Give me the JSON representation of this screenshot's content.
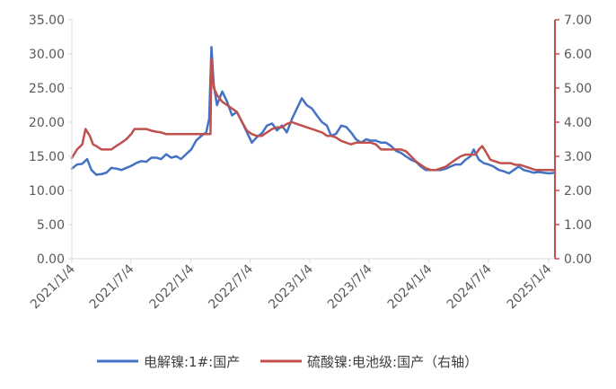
{
  "chart_data": {
    "type": "line",
    "title": "",
    "xlabel": "",
    "ylabel": "",
    "y2label": "",
    "x_ticks": [
      "2021/1/4",
      "2021/7/4",
      "2022/1/4",
      "2022/7/4",
      "2023/1/4",
      "2023/7/4",
      "2024/1/4",
      "2024/7/4",
      "2025/1/4"
    ],
    "x_range": [
      "2021/1/4",
      "2025/1/24"
    ],
    "y_left": {
      "ticks": [
        "0.00",
        "5.00",
        "10.00",
        "15.00",
        "20.00",
        "25.00",
        "30.00",
        "35.00"
      ],
      "ylim": [
        0,
        35
      ]
    },
    "y_right": {
      "ticks": [
        "0.00",
        "1.00",
        "2.00",
        "3.00",
        "4.00",
        "5.00",
        "6.00",
        "7.00"
      ],
      "ylim": [
        0,
        7
      ]
    },
    "grid": false,
    "legend": "bottom",
    "series": [
      {
        "name": "电解镍:1#:国产",
        "axis": "left",
        "color": "#4472C4",
        "points": [
          [
            "2021/1/4",
            13.2
          ],
          [
            "2021/1/20",
            13.8
          ],
          [
            "2021/2/5",
            13.9
          ],
          [
            "2021/2/20",
            14.6
          ],
          [
            "2021/3/5",
            13.0
          ],
          [
            "2021/3/20",
            12.3
          ],
          [
            "2021/4/5",
            12.4
          ],
          [
            "2021/4/20",
            12.6
          ],
          [
            "2021/5/5",
            13.3
          ],
          [
            "2021/5/20",
            13.2
          ],
          [
            "2021/6/5",
            13.0
          ],
          [
            "2021/6/20",
            13.3
          ],
          [
            "2021/7/5",
            13.6
          ],
          [
            "2021/7/20",
            14.0
          ],
          [
            "2021/8/5",
            14.3
          ],
          [
            "2021/8/20",
            14.2
          ],
          [
            "2021/9/5",
            14.8
          ],
          [
            "2021/9/20",
            14.8
          ],
          [
            "2021/10/5",
            14.6
          ],
          [
            "2021/10/20",
            15.3
          ],
          [
            "2021/11/5",
            14.8
          ],
          [
            "2021/11/20",
            15.0
          ],
          [
            "2021/12/5",
            14.6
          ],
          [
            "2021/12/20",
            15.3
          ],
          [
            "2022/1/5",
            16.0
          ],
          [
            "2022/1/20",
            17.3
          ],
          [
            "2022/2/5",
            18.0
          ],
          [
            "2022/2/20",
            18.5
          ],
          [
            "2022/3/1",
            20.5
          ],
          [
            "2022/3/8",
            31.0
          ],
          [
            "2022/3/15",
            25.5
          ],
          [
            "2022/3/25",
            22.5
          ],
          [
            "2022/4/10",
            24.5
          ],
          [
            "2022/4/25",
            23.0
          ],
          [
            "2022/5/10",
            21.0
          ],
          [
            "2022/5/25",
            21.5
          ],
          [
            "2022/6/10",
            20.0
          ],
          [
            "2022/6/25",
            18.5
          ],
          [
            "2022/7/10",
            17.0
          ],
          [
            "2022/7/25",
            17.8
          ],
          [
            "2022/8/10",
            18.4
          ],
          [
            "2022/8/25",
            19.5
          ],
          [
            "2022/9/10",
            19.8
          ],
          [
            "2022/9/25",
            18.8
          ],
          [
            "2022/10/10",
            19.5
          ],
          [
            "2022/10/25",
            18.5
          ],
          [
            "2022/11/10",
            20.5
          ],
          [
            "2022/11/25",
            22.0
          ],
          [
            "2022/12/10",
            23.5
          ],
          [
            "2022/12/25",
            22.5
          ],
          [
            "2023/1/10",
            22.0
          ],
          [
            "2023/1/25",
            21.0
          ],
          [
            "2023/2/10",
            20.0
          ],
          [
            "2023/2/25",
            19.5
          ],
          [
            "2023/3/10",
            18.0
          ],
          [
            "2023/3/25",
            18.3
          ],
          [
            "2023/4/10",
            19.5
          ],
          [
            "2023/4/25",
            19.3
          ],
          [
            "2023/5/10",
            18.5
          ],
          [
            "2023/5/25",
            17.5
          ],
          [
            "2023/6/10",
            17.0
          ],
          [
            "2023/6/25",
            17.5
          ],
          [
            "2023/7/10",
            17.3
          ],
          [
            "2023/7/25",
            17.3
          ],
          [
            "2023/8/10",
            17.0
          ],
          [
            "2023/8/25",
            17.0
          ],
          [
            "2023/9/10",
            16.5
          ],
          [
            "2023/9/25",
            15.8
          ],
          [
            "2023/10/10",
            15.5
          ],
          [
            "2023/10/25",
            15.0
          ],
          [
            "2023/11/10",
            14.5
          ],
          [
            "2023/11/25",
            14.2
          ],
          [
            "2023/12/10",
            13.5
          ],
          [
            "2023/12/25",
            13.0
          ],
          [
            "2024/1/10",
            13.0
          ],
          [
            "2024/1/25",
            13.0
          ],
          [
            "2024/2/10",
            13.0
          ],
          [
            "2024/2/25",
            13.2
          ],
          [
            "2024/3/10",
            13.5
          ],
          [
            "2024/3/25",
            13.8
          ],
          [
            "2024/4/10",
            13.8
          ],
          [
            "2024/4/25",
            14.5
          ],
          [
            "2024/5/10",
            15.0
          ],
          [
            "2024/5/20",
            16.0
          ],
          [
            "2024/6/5",
            14.5
          ],
          [
            "2024/6/20",
            14.0
          ],
          [
            "2024/7/5",
            13.8
          ],
          [
            "2024/7/20",
            13.5
          ],
          [
            "2024/8/5",
            13.0
          ],
          [
            "2024/8/20",
            12.8
          ],
          [
            "2024/9/5",
            12.5
          ],
          [
            "2024/9/20",
            13.0
          ],
          [
            "2024/10/5",
            13.5
          ],
          [
            "2024/10/20",
            13.0
          ],
          [
            "2024/11/5",
            12.8
          ],
          [
            "2024/11/20",
            12.6
          ],
          [
            "2024/12/5",
            12.7
          ],
          [
            "2024/12/20",
            12.6
          ],
          [
            "2025/1/5",
            12.5
          ],
          [
            "2025/1/24",
            12.6
          ]
        ]
      },
      {
        "name": "硫酸镍:电池级:国产（右轴）",
        "axis": "right",
        "color": "#C0504D",
        "points": [
          [
            "2021/1/4",
            2.95
          ],
          [
            "2021/1/20",
            3.2
          ],
          [
            "2021/2/5",
            3.35
          ],
          [
            "2021/2/15",
            3.8
          ],
          [
            "2021/2/28",
            3.6
          ],
          [
            "2021/3/10",
            3.35
          ],
          [
            "2021/3/20",
            3.3
          ],
          [
            "2021/4/5",
            3.2
          ],
          [
            "2021/4/20",
            3.2
          ],
          [
            "2021/5/5",
            3.2
          ],
          [
            "2021/5/20",
            3.3
          ],
          [
            "2021/6/5",
            3.4
          ],
          [
            "2021/6/20",
            3.5
          ],
          [
            "2021/7/5",
            3.65
          ],
          [
            "2021/7/15",
            3.8
          ],
          [
            "2021/8/5",
            3.8
          ],
          [
            "2021/8/20",
            3.8
          ],
          [
            "2021/9/5",
            3.75
          ],
          [
            "2021/9/20",
            3.72
          ],
          [
            "2021/10/5",
            3.7
          ],
          [
            "2021/10/20",
            3.65
          ],
          [
            "2021/11/5",
            3.65
          ],
          [
            "2021/11/20",
            3.65
          ],
          [
            "2021/12/5",
            3.65
          ],
          [
            "2021/12/20",
            3.65
          ],
          [
            "2022/1/5",
            3.65
          ],
          [
            "2022/1/20",
            3.65
          ],
          [
            "2022/2/5",
            3.65
          ],
          [
            "2022/2/20",
            3.65
          ],
          [
            "2022/3/5",
            3.65
          ],
          [
            "2022/3/8",
            5.85
          ],
          [
            "2022/3/15",
            5.0
          ],
          [
            "2022/3/25",
            4.8
          ],
          [
            "2022/4/10",
            4.6
          ],
          [
            "2022/4/25",
            4.5
          ],
          [
            "2022/5/10",
            4.4
          ],
          [
            "2022/5/25",
            4.3
          ],
          [
            "2022/6/10",
            4.0
          ],
          [
            "2022/6/25",
            3.75
          ],
          [
            "2022/7/10",
            3.65
          ],
          [
            "2022/7/25",
            3.6
          ],
          [
            "2022/8/10",
            3.6
          ],
          [
            "2022/8/25",
            3.7
          ],
          [
            "2022/9/10",
            3.8
          ],
          [
            "2022/9/25",
            3.85
          ],
          [
            "2022/10/10",
            3.85
          ],
          [
            "2022/10/25",
            3.95
          ],
          [
            "2022/11/10",
            4.0
          ],
          [
            "2022/11/25",
            3.95
          ],
          [
            "2022/12/10",
            3.9
          ],
          [
            "2022/12/25",
            3.85
          ],
          [
            "2023/1/10",
            3.8
          ],
          [
            "2023/1/25",
            3.75
          ],
          [
            "2023/2/10",
            3.7
          ],
          [
            "2023/2/25",
            3.6
          ],
          [
            "2023/3/10",
            3.6
          ],
          [
            "2023/3/25",
            3.55
          ],
          [
            "2023/4/10",
            3.45
          ],
          [
            "2023/4/25",
            3.4
          ],
          [
            "2023/5/10",
            3.35
          ],
          [
            "2023/5/25",
            3.4
          ],
          [
            "2023/6/10",
            3.4
          ],
          [
            "2023/6/25",
            3.4
          ],
          [
            "2023/7/10",
            3.4
          ],
          [
            "2023/7/25",
            3.35
          ],
          [
            "2023/8/10",
            3.2
          ],
          [
            "2023/8/25",
            3.2
          ],
          [
            "2023/9/10",
            3.2
          ],
          [
            "2023/9/25",
            3.2
          ],
          [
            "2023/10/10",
            3.2
          ],
          [
            "2023/10/25",
            3.15
          ],
          [
            "2023/11/10",
            3.0
          ],
          [
            "2023/11/25",
            2.85
          ],
          [
            "2023/12/10",
            2.75
          ],
          [
            "2023/12/25",
            2.65
          ],
          [
            "2024/1/10",
            2.6
          ],
          [
            "2024/1/25",
            2.6
          ],
          [
            "2024/2/10",
            2.65
          ],
          [
            "2024/2/25",
            2.7
          ],
          [
            "2024/3/10",
            2.8
          ],
          [
            "2024/3/25",
            2.9
          ],
          [
            "2024/4/10",
            3.0
          ],
          [
            "2024/4/25",
            3.05
          ],
          [
            "2024/5/10",
            3.05
          ],
          [
            "2024/5/25",
            3.05
          ],
          [
            "2024/6/5",
            3.2
          ],
          [
            "2024/6/15",
            3.3
          ],
          [
            "2024/6/25",
            3.15
          ],
          [
            "2024/7/10",
            2.9
          ],
          [
            "2024/7/25",
            2.85
          ],
          [
            "2024/8/10",
            2.8
          ],
          [
            "2024/8/25",
            2.8
          ],
          [
            "2024/9/10",
            2.8
          ],
          [
            "2024/9/25",
            2.75
          ],
          [
            "2024/10/10",
            2.75
          ],
          [
            "2024/10/25",
            2.7
          ],
          [
            "2024/11/10",
            2.65
          ],
          [
            "2024/11/25",
            2.6
          ],
          [
            "2024/12/10",
            2.6
          ],
          [
            "2024/12/25",
            2.6
          ],
          [
            "2025/1/10",
            2.6
          ],
          [
            "2025/1/24",
            2.6
          ]
        ]
      }
    ]
  }
}
